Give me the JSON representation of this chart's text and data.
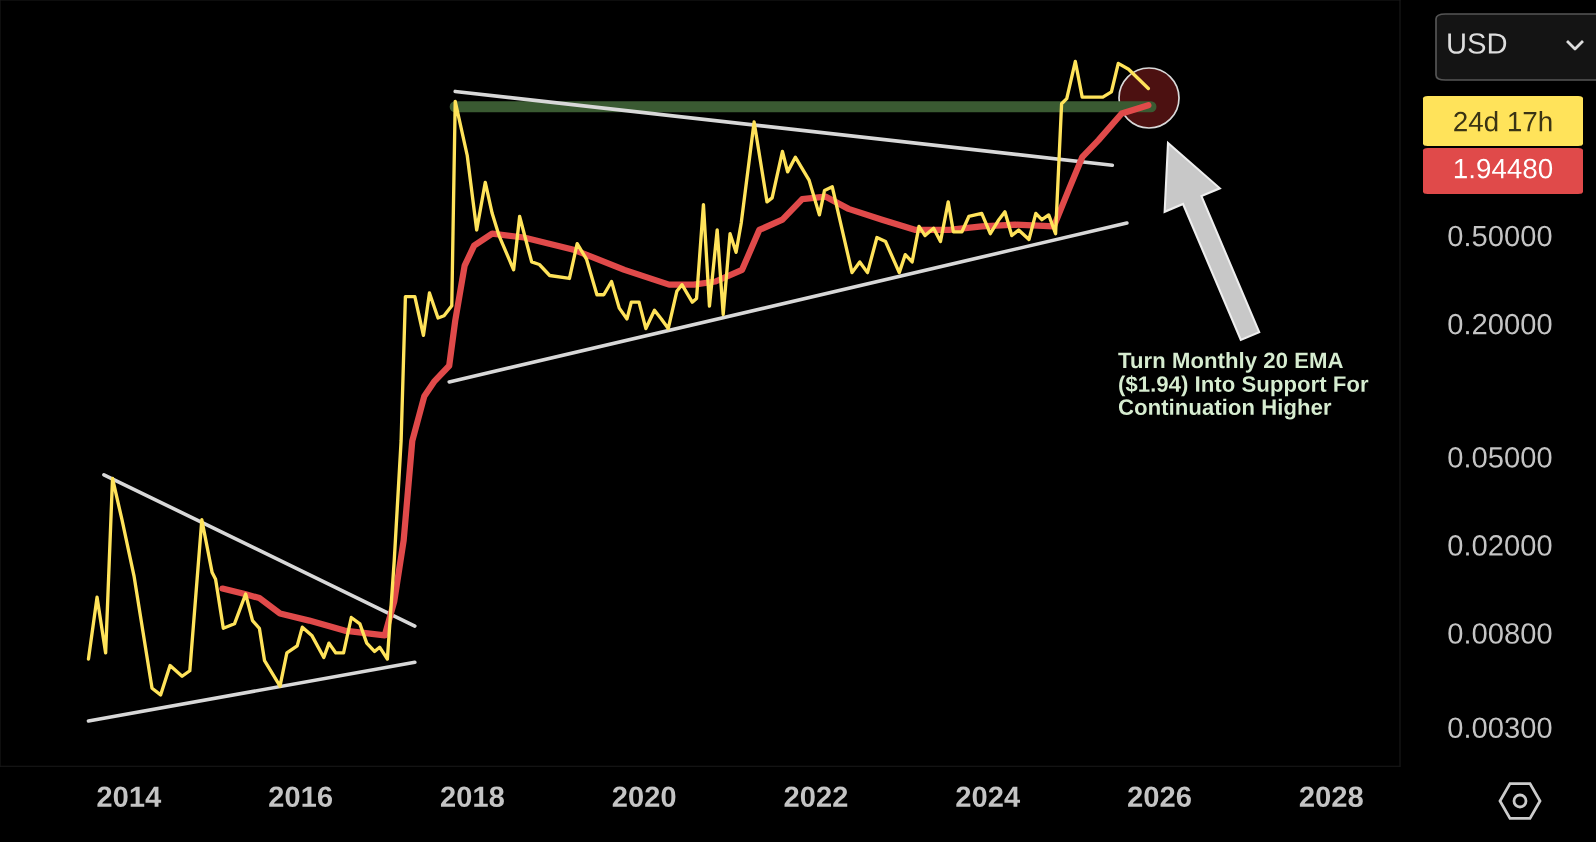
{
  "chart_data": {
    "type": "line",
    "log": "y",
    "grid": false,
    "legend": false,
    "marker": "none",
    "line_style": "solid",
    "xlim": [
      2012.5,
      2028.8
    ],
    "xticks": [
      2014,
      2016,
      2018,
      2020,
      2022,
      2024,
      2026,
      2028
    ],
    "ylim": [
      0.002,
      5.8
    ],
    "yticks": [
      {
        "value": 0.003,
        "label": "0.00300"
      },
      {
        "value": 0.008,
        "label": "0.00800"
      },
      {
        "value": 0.02,
        "label": "0.02000"
      },
      {
        "value": 0.05,
        "label": "0.05000"
      },
      {
        "value": 0.2,
        "label": "0.20000"
      },
      {
        "value": 0.5,
        "label": "0.50000"
      }
    ],
    "series": [
      {
        "color": "#ffe35a",
        "x": [
          2013.53,
          2013.63,
          2013.73,
          2013.81,
          2013.92,
          2014.06,
          2014.27,
          2014.37,
          2014.48,
          2014.62,
          2014.71,
          2014.85,
          2014.97,
          2015.01,
          2015.1,
          2015.23,
          2015.36,
          2015.44,
          2015.52,
          2015.58,
          2015.76,
          2015.84,
          2015.96,
          2016.02,
          2016.13,
          2016.27,
          2016.33,
          2016.41,
          2016.5,
          2016.59,
          2016.69,
          2016.77,
          2016.86,
          2016.92,
          2017.01,
          2017.09,
          2017.17,
          2017.22,
          2017.33,
          2017.43,
          2017.5,
          2017.6,
          2017.67,
          2017.76,
          2017.8,
          2017.94,
          2018.05,
          2018.15,
          2018.23,
          2018.31,
          2018.48,
          2018.55,
          2018.69,
          2018.78,
          2018.9,
          2019.13,
          2019.22,
          2019.33,
          2019.45,
          2019.53,
          2019.62,
          2019.71,
          2019.8,
          2019.85,
          2019.94,
          2020.02,
          2020.12,
          2020.2,
          2020.28,
          2020.38,
          2020.44,
          2020.56,
          2020.61,
          2020.69,
          2020.76,
          2020.85,
          2020.92,
          2021.0,
          2021.07,
          2021.13,
          2021.28,
          2021.43,
          2021.49,
          2021.61,
          2021.67,
          2021.76,
          2021.92,
          2022.04,
          2022.1,
          2022.19,
          2022.42,
          2022.51,
          2022.6,
          2022.71,
          2022.81,
          2022.97,
          2023.04,
          2023.12,
          2023.2,
          2023.27,
          2023.37,
          2023.45,
          2023.54,
          2023.6,
          2023.7,
          2023.78,
          2023.93,
          2024.03,
          2024.13,
          2024.2,
          2024.28,
          2024.36,
          2024.48,
          2024.56,
          2024.63,
          2024.71,
          2024.79,
          2024.86,
          2024.92,
          2025.02,
          2025.1,
          2025.34,
          2025.44,
          2025.52,
          2025.64,
          2025.87
        ],
        "values": [
          0.0061,
          0.0116,
          0.0065,
          0.04,
          0.026,
          0.0145,
          0.0045,
          0.0042,
          0.0057,
          0.0051,
          0.0054,
          0.026,
          0.015,
          0.014,
          0.0084,
          0.0088,
          0.012,
          0.0091,
          0.0084,
          0.006,
          0.0046,
          0.0065,
          0.007,
          0.0085,
          0.0078,
          0.0062,
          0.0072,
          0.0065,
          0.0065,
          0.0094,
          0.0088,
          0.0072,
          0.0066,
          0.0069,
          0.0061,
          0.017,
          0.059,
          0.265,
          0.265,
          0.177,
          0.275,
          0.212,
          0.217,
          0.241,
          2.02,
          1.15,
          0.53,
          0.87,
          0.63,
          0.5,
          0.35,
          0.61,
          0.38,
          0.37,
          0.33,
          0.32,
          0.46,
          0.39,
          0.27,
          0.27,
          0.31,
          0.235,
          0.21,
          0.25,
          0.25,
          0.19,
          0.23,
          0.21,
          0.19,
          0.28,
          0.3,
          0.25,
          0.26,
          0.69,
          0.24,
          0.53,
          0.22,
          0.51,
          0.42,
          0.57,
          1.63,
          0.71,
          0.74,
          1.2,
          0.97,
          1.13,
          0.89,
          0.62,
          0.8,
          0.83,
          0.34,
          0.38,
          0.34,
          0.49,
          0.47,
          0.34,
          0.41,
          0.38,
          0.55,
          0.5,
          0.54,
          0.47,
          0.71,
          0.52,
          0.52,
          0.61,
          0.63,
          0.51,
          0.59,
          0.64,
          0.5,
          0.53,
          0.48,
          0.63,
          0.59,
          0.62,
          0.51,
          1.97,
          2.08,
          3.06,
          2.11,
          2.11,
          2.23,
          3.0,
          2.82,
          2.31
        ]
      },
      {
        "color": "#e04a4a",
        "x": [
          2015.09,
          2015.35,
          2015.52,
          2015.76,
          2016.1,
          2016.51,
          2016.98,
          2017.09,
          2017.2,
          2017.26,
          2017.3,
          2017.44,
          2017.56,
          2017.73,
          2017.8,
          2017.91,
          2018.02,
          2018.23,
          2018.6,
          2019.19,
          2019.77,
          2020.29,
          2020.58,
          2020.83,
          2021.14,
          2021.34,
          2021.61,
          2021.84,
          2022.11,
          2022.38,
          2022.77,
          2023.16,
          2023.55,
          2023.93,
          2024.32,
          2024.77,
          2024.94,
          2025.1,
          2025.29,
          2025.56,
          2025.87
        ],
        "values": [
          0.0127,
          0.012,
          0.0115,
          0.0098,
          0.0091,
          0.0082,
          0.0078,
          0.0111,
          0.021,
          0.039,
          0.059,
          0.094,
          0.11,
          0.129,
          0.206,
          0.366,
          0.45,
          0.51,
          0.49,
          0.43,
          0.35,
          0.3,
          0.3,
          0.31,
          0.35,
          0.53,
          0.59,
          0.73,
          0.75,
          0.66,
          0.59,
          0.53,
          0.53,
          0.55,
          0.56,
          0.55,
          0.8,
          1.13,
          1.35,
          1.78,
          1.94
        ]
      },
      {
        "color": "#3a5a32",
        "x": [
          2017.8,
          2025.9
        ],
        "values": [
          1.91,
          1.91
        ]
      },
      {
        "color": "#d8d8d8",
        "x": [
          2013.53,
          2017.33
        ],
        "values": [
          0.0032,
          0.0059
        ]
      },
      {
        "color": "#d8d8d8",
        "x": [
          2013.71,
          2017.33
        ],
        "values": [
          0.0415,
          0.0086
        ]
      },
      {
        "color": "#d8d8d8",
        "x": [
          2017.8,
          2025.45
        ],
        "values": [
          2.24,
          1.04
        ]
      },
      {
        "color": "#d8d8d8",
        "x": [
          2017.73,
          2025.62
        ],
        "values": [
          0.109,
          0.57
        ]
      }
    ],
    "annotations": [
      "Turn Monthly 20 EMA\n($1.94) Into Support For\nContinuation Higher",
      "24d 17h",
      "1.94480",
      "USD"
    ]
  }
}
